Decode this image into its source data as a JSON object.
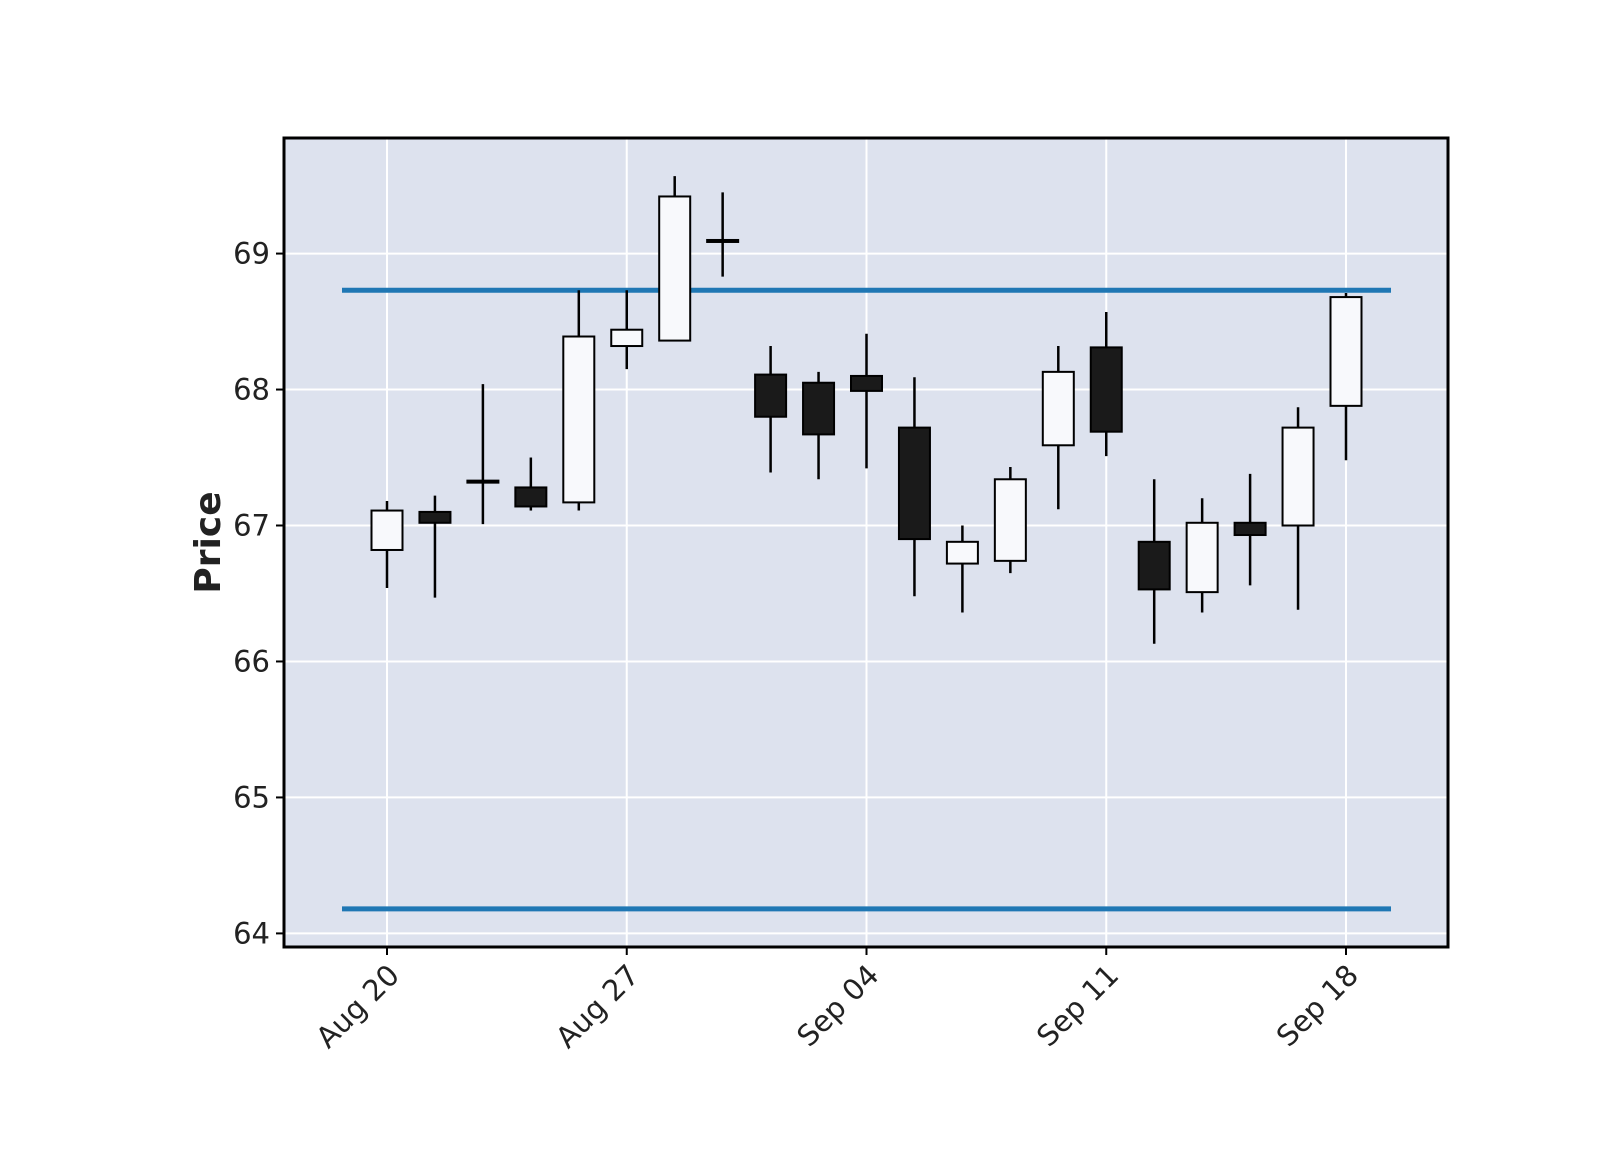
{
  "chart_data": {
    "type": "candlestick",
    "title": "",
    "xlabel": "",
    "ylabel": "Price",
    "ylim": [
      63.9,
      69.85
    ],
    "yticks": [
      64,
      65,
      66,
      67,
      68,
      69
    ],
    "xticks": [
      {
        "index": 0,
        "label": "Aug 20"
      },
      {
        "index": 5,
        "label": "Aug 27"
      },
      {
        "index": 10,
        "label": "Sep 04"
      },
      {
        "index": 15,
        "label": "Sep 11"
      },
      {
        "index": 20,
        "label": "Sep 18"
      }
    ],
    "grid": true,
    "candles": [
      {
        "open": 66.82,
        "high": 67.18,
        "low": 66.54,
        "close": 67.11
      },
      {
        "open": 67.1,
        "high": 67.22,
        "low": 66.47,
        "close": 67.02
      },
      {
        "open": 67.33,
        "high": 68.04,
        "low": 67.01,
        "close": 67.33
      },
      {
        "open": 67.28,
        "high": 67.5,
        "low": 67.11,
        "close": 67.14
      },
      {
        "open": 67.17,
        "high": 68.73,
        "low": 67.11,
        "close": 68.39
      },
      {
        "open": 68.32,
        "high": 68.73,
        "low": 68.15,
        "close": 68.44
      },
      {
        "open": 68.36,
        "high": 69.57,
        "low": 68.36,
        "close": 69.42
      },
      {
        "open": 69.1,
        "high": 69.45,
        "low": 68.83,
        "close": 69.1
      },
      {
        "open": 68.11,
        "high": 68.32,
        "low": 67.39,
        "close": 67.8
      },
      {
        "open": 68.05,
        "high": 68.13,
        "low": 67.34,
        "close": 67.67
      },
      {
        "open": 68.1,
        "high": 68.41,
        "low": 67.42,
        "close": 67.99
      },
      {
        "open": 67.72,
        "high": 68.09,
        "low": 66.48,
        "close": 66.9
      },
      {
        "open": 66.72,
        "high": 67.0,
        "low": 66.36,
        "close": 66.88
      },
      {
        "open": 66.74,
        "high": 67.43,
        "low": 66.65,
        "close": 67.34
      },
      {
        "open": 67.59,
        "high": 68.32,
        "low": 67.12,
        "close": 68.13
      },
      {
        "open": 68.31,
        "high": 68.57,
        "low": 67.51,
        "close": 67.69
      },
      {
        "open": 66.88,
        "high": 67.34,
        "low": 66.13,
        "close": 66.53
      },
      {
        "open": 66.51,
        "high": 67.2,
        "low": 66.36,
        "close": 67.02
      },
      {
        "open": 67.02,
        "high": 67.38,
        "low": 66.56,
        "close": 66.93
      },
      {
        "open": 67.0,
        "high": 67.87,
        "low": 66.38,
        "close": 67.72
      },
      {
        "open": 67.88,
        "high": 68.71,
        "low": 67.48,
        "close": 68.68
      }
    ],
    "hlines": [
      {
        "value": 68.73,
        "color": "#1f77b4"
      },
      {
        "value": 64.18,
        "color": "#1f77b4"
      }
    ],
    "colors": {
      "background": "#dde2ee",
      "grid": "#ffffff",
      "up_fill": "#f8f9fc",
      "down_fill": "#1a1a1a",
      "edge": "#000000"
    }
  }
}
